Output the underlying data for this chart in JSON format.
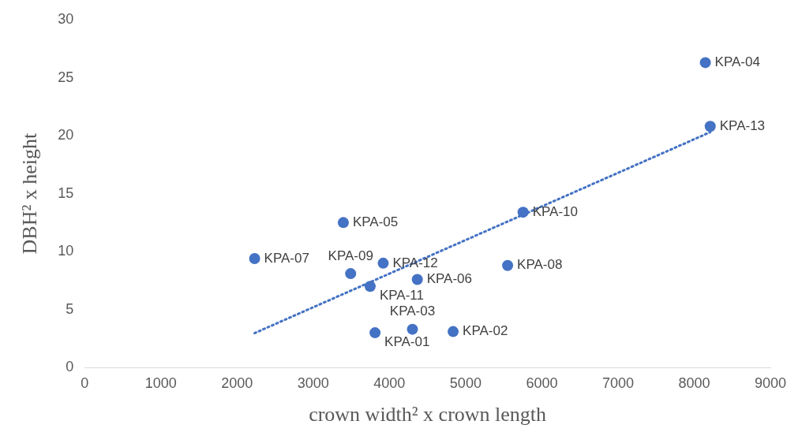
{
  "chart_data": {
    "type": "scatter",
    "xlabel": "crown width² x crown length",
    "ylabel": "DBH² x height",
    "xlim": [
      0,
      9000
    ],
    "xticks": [
      0,
      1000,
      2000,
      3000,
      4000,
      5000,
      6000,
      7000,
      8000,
      9000
    ],
    "ylim": [
      0,
      30
    ],
    "yticks": [
      0,
      5,
      10,
      15,
      20,
      25,
      30
    ],
    "grid": false,
    "legend": false,
    "marker": "circle",
    "series": [
      {
        "type": "scatter",
        "color": "#4472c4",
        "x": [
          3811,
          4836,
          4302,
          8146,
          3395,
          4366,
          2231,
          5551,
          3491,
          5754,
          3747,
          3918,
          8210
        ],
        "values": [
          3.0,
          3.1,
          3.3,
          26.3,
          12.5,
          7.6,
          9.4,
          8.8,
          8.1,
          13.4,
          7.0,
          9.0,
          20.8
        ]
      },
      {
        "type": "line",
        "color": "#4472c4",
        "line_style": "dotted",
        "marker": "none",
        "x": [
          2231,
          8210
        ],
        "values": [
          2.97,
          20.3
        ]
      }
    ],
    "annotations": [
      {
        "text": "KPA-01",
        "x": 3811,
        "y": 3.0
      },
      {
        "text": "KPA-02",
        "x": 4836,
        "y": 3.1
      },
      {
        "text": "KPA-03",
        "x": 4302,
        "y": 3.3
      },
      {
        "text": "KPA-04",
        "x": 8146,
        "y": 26.3
      },
      {
        "text": "KPA-05",
        "x": 3395,
        "y": 12.5
      },
      {
        "text": "KPA-06",
        "x": 4366,
        "y": 7.6
      },
      {
        "text": "KPA-07",
        "x": 2231,
        "y": 9.4
      },
      {
        "text": "KPA-08",
        "x": 5551,
        "y": 8.8
      },
      {
        "text": "KPA-09",
        "x": 3491,
        "y": 8.1
      },
      {
        "text": "KPA-10",
        "x": 5754,
        "y": 13.4
      },
      {
        "text": "KPA-11",
        "x": 3747,
        "y": 7.0
      },
      {
        "text": "KPA-12",
        "x": 3918,
        "y": 9.0
      },
      {
        "text": "KPA-13",
        "x": 8210,
        "y": 20.8
      }
    ]
  }
}
